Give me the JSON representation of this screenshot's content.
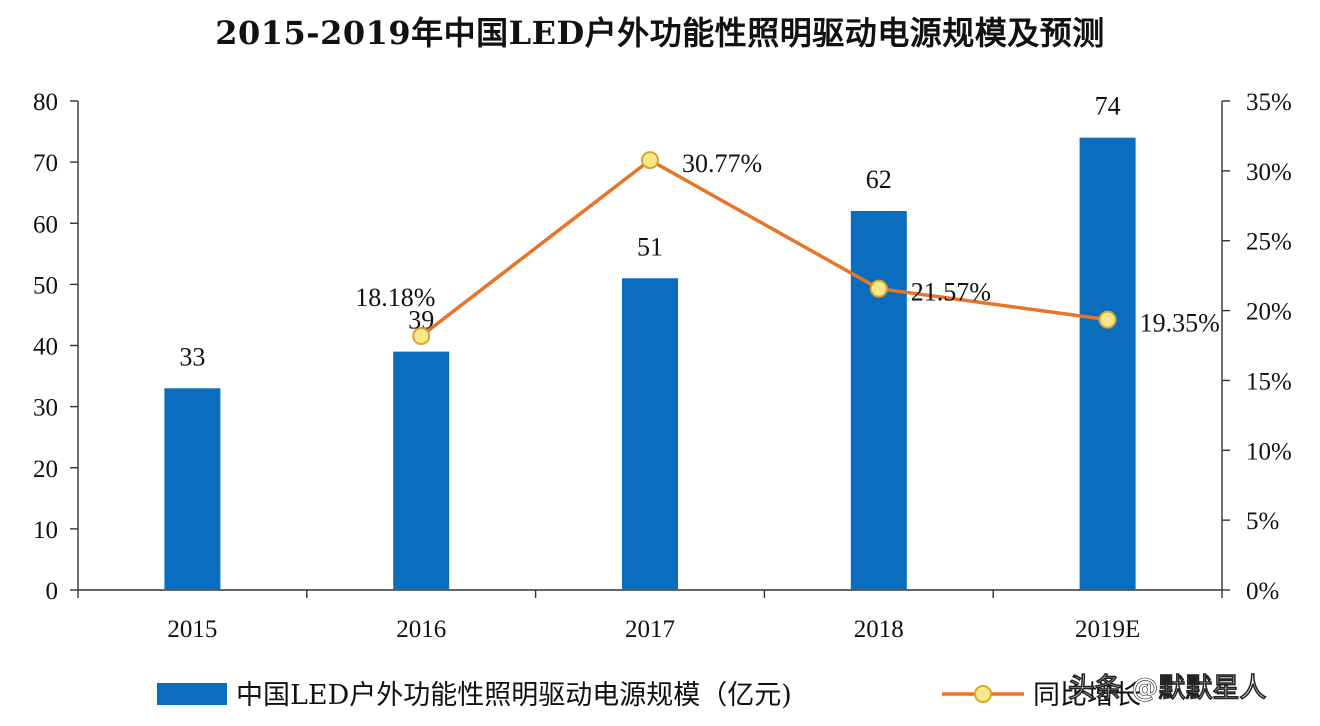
{
  "chart_data": {
    "type": "bar+line",
    "title": "2015-2019年中国LED户外功能性照明驱动电源规模及预测",
    "categories": [
      "2015",
      "2016",
      "2017",
      "2018",
      "2019E"
    ],
    "series": [
      {
        "name": "中国LED户外功能性照明驱动电源规模（亿元)",
        "type": "bar",
        "axis": "left",
        "color": "#0B6DBE",
        "values": [
          33,
          39,
          51,
          62,
          74
        ],
        "labels": [
          "33",
          "39",
          "51",
          "62",
          "74"
        ]
      },
      {
        "name": "同比增长",
        "type": "line",
        "axis": "right",
        "color": "#E8742A",
        "marker_color": "#F6E98A",
        "values": [
          null,
          18.18,
          30.77,
          21.57,
          19.35
        ],
        "labels": [
          "",
          "18.18%",
          "30.77%",
          "21.57%",
          "19.35%"
        ]
      }
    ],
    "y_left": {
      "min": 0,
      "max": 80,
      "ticks": [
        "0",
        "10",
        "20",
        "30",
        "40",
        "50",
        "60",
        "70",
        "80"
      ]
    },
    "y_right": {
      "min": 0,
      "max": 35,
      "ticks": [
        "0%",
        "5%",
        "10%",
        "15%",
        "20%",
        "25%",
        "30%",
        "35%"
      ]
    },
    "grid": false,
    "legend_position": "bottom"
  },
  "watermark": "头条 @默默星人"
}
